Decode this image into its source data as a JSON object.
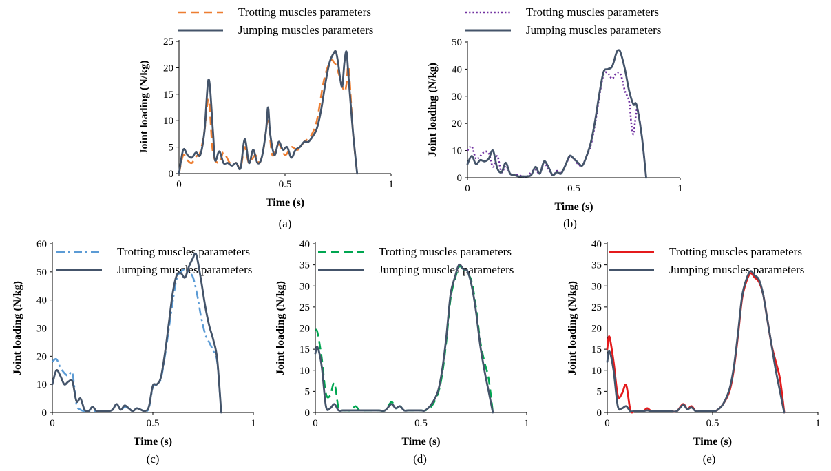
{
  "chart_data": [
    {
      "type": "line",
      "panel_label": "(a)",
      "xlabel": "Time (s)",
      "ylabel": "Joint loading (N/kg)",
      "xlim": [
        0,
        1
      ],
      "ylim": [
        0,
        25
      ],
      "xticks": [
        "0",
        "0.5",
        "1"
      ],
      "yticks": [
        "0",
        "5",
        "10",
        "15",
        "20",
        "25"
      ],
      "grid": false,
      "legend": "top",
      "series": [
        {
          "name": "Trotting muscles parameters",
          "color": "#ED7D31",
          "dash": "dashed",
          "x": [
            0,
            0.02,
            0.04,
            0.06,
            0.08,
            0.1,
            0.12,
            0.14,
            0.16,
            0.19,
            0.21,
            0.24,
            0.27,
            0.29,
            0.31,
            0.33,
            0.36,
            0.38,
            0.4,
            0.42,
            0.44,
            0.47,
            0.5,
            0.53,
            0.56,
            0.59,
            0.62,
            0.65,
            0.68,
            0.7,
            0.72,
            0.73,
            0.74,
            0.76,
            0.78,
            0.79,
            0.8,
            0.82,
            0.84
          ],
          "y": [
            0,
            3.5,
            2.5,
            2.0,
            3.2,
            4.0,
            8.0,
            14.0,
            4.0,
            2.0,
            4.0,
            2.0,
            2.0,
            1.0,
            5.0,
            2.0,
            3.5,
            2.0,
            5.0,
            10.0,
            3.5,
            5.5,
            3.5,
            5.0,
            4.5,
            6.0,
            7.0,
            10.0,
            17.0,
            20.0,
            21.5,
            21.0,
            20.5,
            18.0,
            15.5,
            17.0,
            20.0,
            8.0,
            0
          ]
        },
        {
          "name": "Jumping muscles parameters",
          "color": "#44546A",
          "dash": "solid",
          "x": [
            0,
            0.02,
            0.04,
            0.06,
            0.08,
            0.1,
            0.12,
            0.14,
            0.16,
            0.17,
            0.19,
            0.21,
            0.23,
            0.25,
            0.27,
            0.29,
            0.31,
            0.33,
            0.35,
            0.37,
            0.39,
            0.41,
            0.42,
            0.43,
            0.45,
            0.47,
            0.49,
            0.51,
            0.53,
            0.55,
            0.57,
            0.59,
            0.61,
            0.63,
            0.65,
            0.67,
            0.69,
            0.71,
            0.73,
            0.74,
            0.75,
            0.76,
            0.77,
            0.78,
            0.79,
            0.8,
            0.82,
            0.84
          ],
          "y": [
            0,
            4.5,
            3.5,
            3.0,
            4.0,
            3.5,
            8.0,
            17.8,
            8.0,
            2.5,
            4.2,
            2.0,
            2.0,
            1.5,
            2.0,
            1.0,
            6.5,
            2.0,
            4.5,
            2.0,
            3.0,
            8.0,
            12.5,
            7.5,
            3.5,
            6.0,
            4.5,
            5.0,
            3.0,
            4.5,
            5.0,
            6.0,
            6.0,
            7.0,
            8.5,
            12.0,
            17.0,
            21.0,
            22.8,
            23.0,
            21.0,
            18.0,
            16.5,
            21.0,
            23.0,
            18.0,
            8.0,
            0
          ]
        }
      ]
    },
    {
      "type": "line",
      "panel_label": "(b)",
      "xlabel": "Time (s)",
      "ylabel": "Joint loading (N/kg)",
      "xlim": [
        0,
        1
      ],
      "ylim": [
        0,
        50
      ],
      "xticks": [
        "0",
        "0.5",
        "1"
      ],
      "yticks": [
        "0",
        "10",
        "20",
        "30",
        "40",
        "50"
      ],
      "grid": false,
      "legend": "top",
      "series": [
        {
          "name": "Trotting muscles parameters",
          "color": "#7030A0",
          "dash": "dotted",
          "x": [
            0,
            0.02,
            0.04,
            0.06,
            0.08,
            0.1,
            0.12,
            0.14,
            0.16,
            0.18,
            0.2,
            0.22,
            0.24,
            0.26,
            0.28,
            0.3,
            0.32,
            0.34,
            0.36,
            0.38,
            0.4,
            0.42,
            0.44,
            0.46,
            0.48,
            0.5,
            0.52,
            0.54,
            0.56,
            0.58,
            0.6,
            0.62,
            0.64,
            0.66,
            0.68,
            0.7,
            0.72,
            0.74,
            0.76,
            0.77,
            0.78,
            0.79,
            0.8,
            0.82,
            0.84
          ],
          "y": [
            10,
            11.5,
            7.0,
            8.0,
            9.5,
            9.0,
            4.0,
            8.0,
            2.0,
            4.5,
            1.5,
            1.0,
            1.0,
            0.5,
            0.5,
            2.0,
            3.0,
            1.5,
            5.5,
            3.0,
            1.0,
            2.5,
            2.0,
            4.5,
            7.5,
            7.0,
            5.0,
            4.5,
            8.0,
            12.0,
            20.0,
            30.0,
            38.0,
            38.5,
            36.5,
            38.5,
            38.0,
            32.0,
            28.0,
            20.0,
            16.0,
            22.0,
            25.0,
            15.0,
            0
          ]
        },
        {
          "name": "Jumping muscles parameters",
          "color": "#44546A",
          "dash": "solid",
          "x": [
            0,
            0.02,
            0.04,
            0.06,
            0.08,
            0.1,
            0.12,
            0.14,
            0.16,
            0.18,
            0.2,
            0.22,
            0.24,
            0.26,
            0.28,
            0.3,
            0.32,
            0.34,
            0.36,
            0.38,
            0.4,
            0.42,
            0.44,
            0.46,
            0.48,
            0.5,
            0.52,
            0.54,
            0.56,
            0.58,
            0.6,
            0.62,
            0.64,
            0.66,
            0.68,
            0.7,
            0.71,
            0.72,
            0.74,
            0.76,
            0.78,
            0.79,
            0.8,
            0.82,
            0.84
          ],
          "y": [
            5,
            8.0,
            5.0,
            6.5,
            6.0,
            7.0,
            10.0,
            3.5,
            2.0,
            5.5,
            1.5,
            1.0,
            0.5,
            0.5,
            0.5,
            1.0,
            4.0,
            1.5,
            6.0,
            4.0,
            1.0,
            2.0,
            1.5,
            4.5,
            8.0,
            7.0,
            5.5,
            4.5,
            8.0,
            13.0,
            21.0,
            31.0,
            39.0,
            40.0,
            41.0,
            46.0,
            47.0,
            46.0,
            40.0,
            32.0,
            27.0,
            27.5,
            25.0,
            15.0,
            0
          ]
        }
      ]
    },
    {
      "type": "line",
      "panel_label": "(c)",
      "xlabel": "Time (s)",
      "ylabel": "Joint loading (N/kg)",
      "xlim": [
        0,
        1
      ],
      "ylim": [
        0,
        60
      ],
      "xticks": [
        "0",
        "0.5",
        "1"
      ],
      "yticks": [
        "0",
        "10",
        "20",
        "30",
        "40",
        "50",
        "60"
      ],
      "grid": false,
      "legend": "top",
      "series": [
        {
          "name": "Trotting muscles parameters",
          "color": "#5B9BD5",
          "dash": "dashdot",
          "x": [
            0,
            0.02,
            0.04,
            0.06,
            0.08,
            0.1,
            0.12,
            0.14,
            0.16,
            0.18,
            0.2,
            0.22,
            0.24,
            0.26,
            0.28,
            0.3,
            0.32,
            0.34,
            0.36,
            0.38,
            0.4,
            0.42,
            0.44,
            0.46,
            0.48,
            0.5,
            0.52,
            0.54,
            0.56,
            0.58,
            0.6,
            0.62,
            0.64,
            0.66,
            0.68,
            0.7,
            0.72,
            0.74,
            0.76,
            0.78,
            0.8,
            0.82,
            0.84
          ],
          "y": [
            18.0,
            19.0,
            16.0,
            14.0,
            13.0,
            14.0,
            3.0,
            1.0,
            0.5,
            0.5,
            0.5,
            0.5,
            0.5,
            0.5,
            0.5,
            1.0,
            3.0,
            1.0,
            2.0,
            1.5,
            0.5,
            1.5,
            1.0,
            0.5,
            1.5,
            9.0,
            10.0,
            12.0,
            20.0,
            30.0,
            40.0,
            48.0,
            50.0,
            51.0,
            50.0,
            48.0,
            42.0,
            34.0,
            28.0,
            25.0,
            22.0,
            18.0,
            0
          ]
        },
        {
          "name": "Jumping muscles parameters",
          "color": "#44546A",
          "dash": "solid",
          "x": [
            0,
            0.02,
            0.04,
            0.06,
            0.08,
            0.1,
            0.12,
            0.14,
            0.16,
            0.18,
            0.2,
            0.22,
            0.24,
            0.26,
            0.28,
            0.3,
            0.32,
            0.34,
            0.36,
            0.38,
            0.4,
            0.42,
            0.44,
            0.46,
            0.48,
            0.5,
            0.52,
            0.54,
            0.56,
            0.58,
            0.6,
            0.62,
            0.64,
            0.66,
            0.68,
            0.7,
            0.71,
            0.72,
            0.74,
            0.76,
            0.78,
            0.8,
            0.82,
            0.84
          ],
          "y": [
            10.0,
            15.0,
            13.0,
            10.0,
            11.0,
            11.0,
            4.0,
            5.0,
            1.0,
            0.5,
            2.0,
            0.5,
            0.5,
            0.5,
            0.5,
            1.0,
            3.0,
            1.0,
            2.5,
            1.5,
            0.5,
            1.5,
            1.0,
            0.5,
            2.0,
            9.5,
            10.0,
            12.5,
            21.0,
            32.0,
            43.0,
            49.0,
            49.5,
            48.0,
            52.0,
            55.0,
            56.5,
            55.0,
            47.0,
            38.0,
            31.0,
            26.0,
            19.0,
            0
          ]
        }
      ]
    },
    {
      "type": "line",
      "panel_label": "(d)",
      "xlabel": "Time (s)",
      "ylabel": "Joint loading (N/kg)",
      "xlim": [
        0,
        1
      ],
      "ylim": [
        0,
        40
      ],
      "xticks": [
        "0",
        "0.5",
        "1"
      ],
      "yticks": [
        "0",
        "5",
        "10",
        "15",
        "20",
        "25",
        "30",
        "35",
        "40"
      ],
      "grid": false,
      "legend": "top",
      "series": [
        {
          "name": "Trotting muscles parameters",
          "color": "#00A651",
          "dash": "dashed",
          "x": [
            0,
            0.01,
            0.03,
            0.05,
            0.07,
            0.09,
            0.11,
            0.13,
            0.15,
            0.17,
            0.19,
            0.21,
            0.24,
            0.27,
            0.3,
            0.33,
            0.36,
            0.38,
            0.4,
            0.42,
            0.44,
            0.47,
            0.5,
            0.52,
            0.55,
            0.58,
            0.6,
            0.62,
            0.64,
            0.66,
            0.68,
            0.7,
            0.72,
            0.74,
            0.76,
            0.78,
            0.8,
            0.82,
            0.84
          ],
          "y": [
            19.5,
            19.0,
            13.0,
            4.5,
            4.0,
            7.0,
            1.0,
            0.5,
            0.5,
            0.5,
            1.5,
            0.5,
            0.5,
            0.5,
            0.5,
            0.5,
            2.5,
            1.0,
            1.5,
            0.5,
            0.5,
            0.5,
            0.5,
            0.5,
            1.5,
            4.5,
            9.0,
            17.0,
            27.0,
            31.5,
            34.5,
            34.0,
            33.0,
            31.0,
            25.0,
            17.0,
            12.0,
            8.0,
            0
          ]
        },
        {
          "name": "Jumping muscles parameters",
          "color": "#44546A",
          "dash": "solid",
          "x": [
            0,
            0.01,
            0.03,
            0.05,
            0.07,
            0.09,
            0.11,
            0.13,
            0.15,
            0.17,
            0.19,
            0.21,
            0.24,
            0.27,
            0.3,
            0.33,
            0.36,
            0.38,
            0.4,
            0.42,
            0.44,
            0.47,
            0.5,
            0.52,
            0.55,
            0.58,
            0.6,
            0.62,
            0.64,
            0.66,
            0.68,
            0.7,
            0.72,
            0.74,
            0.76,
            0.78,
            0.8,
            0.82,
            0.84
          ],
          "y": [
            14.0,
            15.5,
            11.0,
            1.5,
            1.0,
            2.0,
            0.5,
            0.5,
            0.5,
            0.5,
            0.5,
            0.5,
            0.5,
            0.5,
            0.5,
            0.5,
            2.0,
            1.0,
            1.5,
            0.5,
            0.5,
            0.5,
            0.5,
            0.5,
            2.0,
            5.0,
            10.0,
            18.0,
            28.0,
            32.0,
            35.0,
            34.0,
            33.5,
            30.0,
            24.0,
            16.0,
            10.0,
            5.0,
            0
          ]
        }
      ]
    },
    {
      "type": "line",
      "panel_label": "(e)",
      "xlabel": "Time (s)",
      "ylabel": "Joint loading (N/kg)",
      "xlim": [
        0,
        1
      ],
      "ylim": [
        0,
        40
      ],
      "xticks": [
        "0",
        "0.5",
        "1"
      ],
      "yticks": [
        "0",
        "5",
        "10",
        "15",
        "20",
        "25",
        "30",
        "35",
        "40"
      ],
      "grid": false,
      "legend": "top",
      "series": [
        {
          "name": "Trotting muscles parameters",
          "color": "#E41A1C",
          "dash": "solid",
          "x": [
            0,
            0.01,
            0.03,
            0.05,
            0.07,
            0.09,
            0.11,
            0.13,
            0.15,
            0.17,
            0.19,
            0.21,
            0.24,
            0.27,
            0.3,
            0.33,
            0.36,
            0.38,
            0.4,
            0.42,
            0.44,
            0.47,
            0.5,
            0.52,
            0.55,
            0.58,
            0.6,
            0.62,
            0.64,
            0.66,
            0.68,
            0.7,
            0.72,
            0.74,
            0.76,
            0.78,
            0.8,
            0.82,
            0.84
          ],
          "y": [
            15.0,
            18.0,
            12.0,
            4.0,
            4.5,
            6.5,
            0.5,
            0.3,
            0.3,
            0.3,
            1.0,
            0.3,
            0.3,
            0.3,
            0.3,
            0.3,
            2.0,
            0.8,
            1.5,
            0.3,
            0.3,
            0.3,
            0.3,
            0.5,
            2.0,
            5.0,
            10.0,
            18.0,
            27.0,
            31.0,
            33.0,
            32.0,
            31.0,
            28.0,
            22.0,
            16.0,
            12.0,
            8.0,
            0
          ]
        },
        {
          "name": "Jumping muscles parameters",
          "color": "#44546A",
          "dash": "solid",
          "x": [
            0,
            0.01,
            0.03,
            0.05,
            0.07,
            0.09,
            0.11,
            0.13,
            0.15,
            0.17,
            0.19,
            0.21,
            0.24,
            0.27,
            0.3,
            0.33,
            0.36,
            0.38,
            0.4,
            0.42,
            0.44,
            0.47,
            0.5,
            0.52,
            0.55,
            0.58,
            0.6,
            0.62,
            0.64,
            0.66,
            0.68,
            0.7,
            0.72,
            0.74,
            0.76,
            0.78,
            0.8,
            0.82,
            0.84
          ],
          "y": [
            12.0,
            14.5,
            10.0,
            1.5,
            1.0,
            1.5,
            0.3,
            0.3,
            0.3,
            0.3,
            0.5,
            0.3,
            0.3,
            0.3,
            0.3,
            0.3,
            1.8,
            0.8,
            1.2,
            0.3,
            0.3,
            0.3,
            0.3,
            0.5,
            2.0,
            5.5,
            10.5,
            18.5,
            27.5,
            31.5,
            33.5,
            32.5,
            31.5,
            28.0,
            22.0,
            16.0,
            10.0,
            5.0,
            0
          ]
        }
      ]
    }
  ]
}
